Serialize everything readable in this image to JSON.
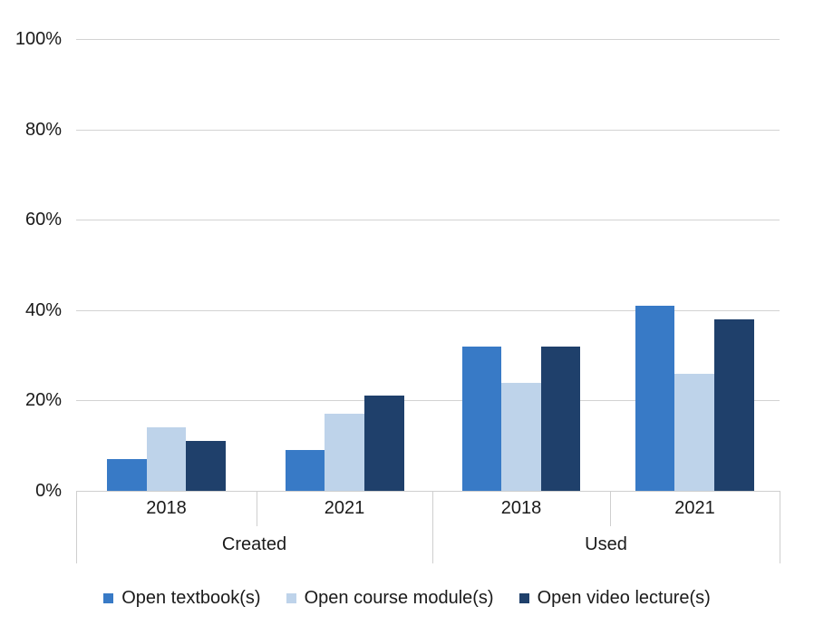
{
  "chart_data": {
    "type": "bar",
    "title": "",
    "group_categories": [
      "Created",
      "Used"
    ],
    "categories": [
      {
        "group": "Created",
        "year": "2018"
      },
      {
        "group": "Created",
        "year": "2021"
      },
      {
        "group": "Used",
        "year": "2018"
      },
      {
        "group": "Used",
        "year": "2021"
      }
    ],
    "series": [
      {
        "name": "Open textbook(s)",
        "color": "#387AC6",
        "values": [
          7,
          9,
          32,
          41
        ]
      },
      {
        "name": "Open course module(s)",
        "color": "#BED3EA",
        "values": [
          14,
          17,
          24,
          26
        ]
      },
      {
        "name": "Open video lecture(s)",
        "color": "#1F406B",
        "values": [
          11,
          21,
          32,
          38
        ]
      }
    ],
    "xlabel": "",
    "ylabel": "",
    "ylim": [
      0,
      100
    ],
    "yticks": [
      "100%",
      "80%",
      "60%",
      "40%",
      "20%",
      "0%"
    ],
    "ytick_values": [
      100,
      80,
      60,
      40,
      20,
      0
    ],
    "grid": "horizontal",
    "legend_position": "bottom",
    "gridline_color": "#D3D3D3",
    "axis_line_color": "#CFCFCF",
    "text_color": "#1A1A1A"
  }
}
